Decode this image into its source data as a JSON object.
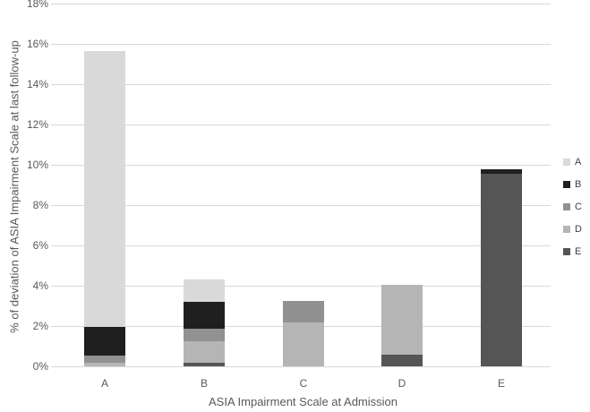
{
  "chart_data": {
    "type": "bar",
    "stacked": true,
    "title": "",
    "xlabel": "ASIA Impairment Scale at Admission",
    "ylabel": "% of deviation of ASIA Impairment Scale at last follow-up",
    "categories": [
      "A",
      "B",
      "C",
      "D",
      "E"
    ],
    "series": [
      {
        "name": "A",
        "color": "#d9d9d9",
        "values": [
          13.7,
          1.1,
          0,
          0,
          0
        ]
      },
      {
        "name": "B",
        "color": "#1f1f1f",
        "values": [
          1.4,
          1.35,
          0,
          0,
          0.25
        ]
      },
      {
        "name": "C",
        "color": "#919191",
        "values": [
          0.35,
          0.6,
          1.05,
          0,
          0
        ]
      },
      {
        "name": "D",
        "color": "#b5b5b5",
        "values": [
          0.2,
          1.05,
          2.2,
          3.45,
          0
        ]
      },
      {
        "name": "E",
        "color": "#555555",
        "values": [
          0,
          0.2,
          0,
          0.6,
          9.55
        ]
      }
    ],
    "stack_order_bottom_to_top": [
      "E",
      "D",
      "C",
      "B",
      "A"
    ],
    "totals": [
      15.65,
      4.3,
      3.25,
      4.05,
      9.8
    ],
    "ylim": [
      0,
      18
    ],
    "ytick_step": 2,
    "yticks": [
      "0%",
      "2%",
      "4%",
      "6%",
      "8%",
      "10%",
      "12%",
      "14%",
      "16%",
      "18%"
    ],
    "grid": true,
    "legend_position": "right",
    "legend_entries": [
      "A",
      "B",
      "C",
      "D",
      "E"
    ]
  },
  "styles": {
    "background": "#ffffff",
    "grid_color": "#d9d9d9",
    "axis_text_color": "#595959",
    "legend_text_color": "#404040"
  }
}
